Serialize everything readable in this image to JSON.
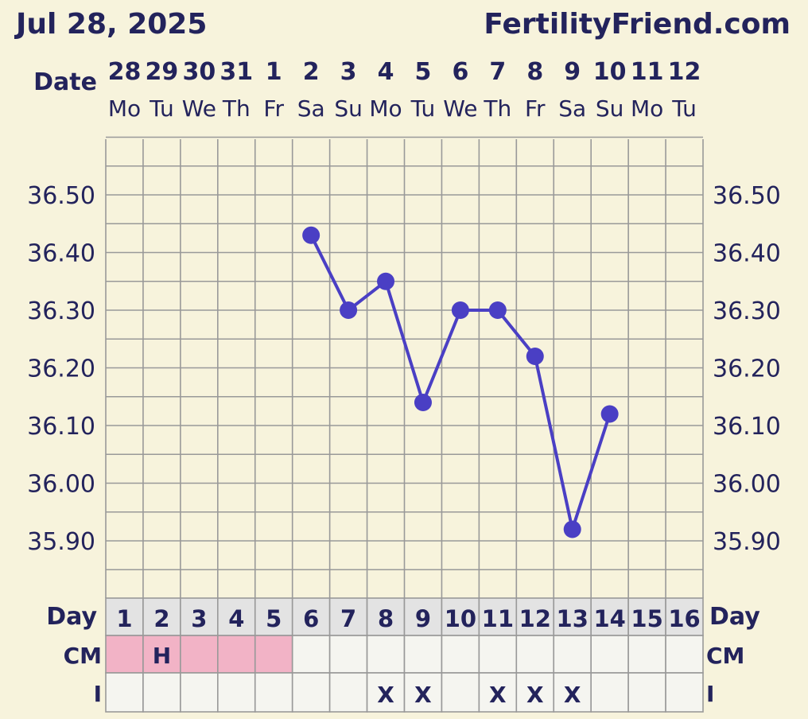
{
  "header": {
    "date": "Jul 28, 2025",
    "site": "FertilityFriend.com"
  },
  "labels": {
    "date_row": "Date",
    "day_row_left": "Day",
    "day_row_right": "Day",
    "cm_left": "CM",
    "cm_right": "CM",
    "i_left": "I",
    "i_right": "I"
  },
  "chart_data": {
    "type": "line",
    "x": [
      "28",
      "29",
      "30",
      "31",
      "1",
      "2",
      "3",
      "4",
      "5",
      "6",
      "7",
      "8",
      "9",
      "10",
      "11",
      "12"
    ],
    "weekdays": [
      "Mo",
      "Tu",
      "We",
      "Th",
      "Fr",
      "Sa",
      "Su",
      "Mo",
      "Tu",
      "We",
      "Th",
      "Fr",
      "Sa",
      "Su",
      "Mo",
      "Tu"
    ],
    "cycle_days": [
      "1",
      "2",
      "3",
      "4",
      "5",
      "6",
      "7",
      "8",
      "9",
      "10",
      "11",
      "12",
      "13",
      "14",
      "15",
      "16"
    ],
    "series": [
      {
        "values": [
          null,
          null,
          null,
          null,
          null,
          36.43,
          36.3,
          36.35,
          36.14,
          36.3,
          36.3,
          36.22,
          35.92,
          36.12,
          null,
          null
        ]
      }
    ],
    "yticks": [
      "36.50",
      "36.40",
      "36.30",
      "36.20",
      "36.10",
      "36.00",
      "35.90"
    ],
    "ylim": [
      35.85,
      36.55
    ],
    "cm": [
      "",
      "H",
      "",
      "",
      "",
      "",
      "",
      "",
      "",
      "",
      "",
      "",
      "",
      "",
      "",
      ""
    ],
    "cm_flag": [
      true,
      true,
      true,
      true,
      true,
      false,
      false,
      false,
      false,
      false,
      false,
      false,
      false,
      false,
      false,
      false
    ],
    "intercourse": [
      "",
      "",
      "",
      "",
      "",
      "",
      "",
      "X",
      "X",
      "",
      "X",
      "X",
      "X",
      "",
      "",
      ""
    ],
    "colors": {
      "line": "#4a3fc4",
      "grid": "#999999",
      "background": "#f7f3dc",
      "text": "#23235c",
      "menses": "#f2b3c6",
      "row_bg": "#f5f5f0",
      "day_bg": "#e3e3e3"
    }
  }
}
